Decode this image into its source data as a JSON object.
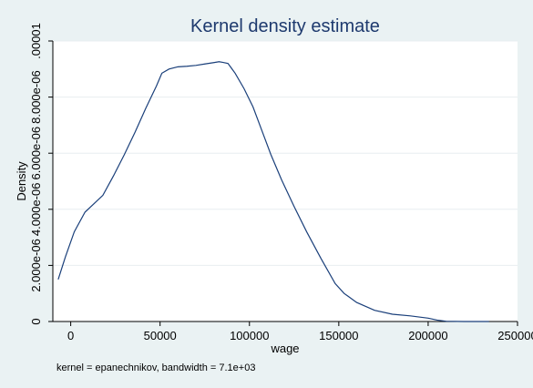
{
  "chart_data": {
    "type": "line",
    "title": "Kernel density estimate",
    "xlabel": "wage",
    "ylabel": "Density",
    "note": "kernel = epanechnikov, bandwidth =  7.1e+03",
    "xlim": [
      -10000,
      250000
    ],
    "ylim": [
      0,
      1e-05
    ],
    "x_ticks": [
      {
        "value": 0,
        "label": "0"
      },
      {
        "value": 50000,
        "label": "50000"
      },
      {
        "value": 100000,
        "label": "100000"
      },
      {
        "value": 150000,
        "label": "150000"
      },
      {
        "value": 200000,
        "label": "200000"
      },
      {
        "value": 250000,
        "label": "250000"
      }
    ],
    "y_ticks": [
      {
        "value": 0,
        "label": "0"
      },
      {
        "value": 2e-06,
        "label": "2.000e-06"
      },
      {
        "value": 4e-06,
        "label": "4.000e-06"
      },
      {
        "value": 6e-06,
        "label": "6.000e-06"
      },
      {
        "value": 8e-06,
        "label": "8.000e-06"
      },
      {
        "value": 1e-05,
        "label": ".00001"
      }
    ],
    "grid": true,
    "line_color": "#1a3f7a",
    "series": [
      {
        "x": [
          -7000,
          -3000,
          2000,
          8000,
          13000,
          18000,
          24000,
          30000,
          36000,
          42000,
          48000,
          51000,
          55000,
          60000,
          65000,
          70000,
          75000,
          80000,
          83000,
          85000,
          88000,
          92000,
          97000,
          102000,
          107000,
          112000,
          118000,
          125000,
          132000,
          140000,
          148000,
          153000,
          160000,
          170000,
          180000,
          190000,
          200000,
          205000,
          210000,
          220000,
          234000
        ],
        "y": [
          1.5e-06,
          2.3e-06,
          3.2e-06,
          3.9e-06,
          4.2e-06,
          4.5e-06,
          5.2e-06,
          5.95e-06,
          6.75e-06,
          7.6e-06,
          8.4e-06,
          8.85e-06,
          9e-06,
          9.08e-06,
          9.1e-06,
          9.13e-06,
          9.18e-06,
          9.23e-06,
          9.26e-06,
          9.24e-06,
          9.2e-06,
          8.85e-06,
          8.3e-06,
          7.65e-06,
          6.8e-06,
          5.95e-06,
          5.05e-06,
          4.1e-06,
          3.2e-06,
          2.25e-06,
          1.35e-06,
          1e-06,
          6.8e-07,
          4e-07,
          2.6e-07,
          2e-07,
          1.2e-07,
          5e-08,
          1e-08,
          0.0,
          0.0
        ]
      }
    ]
  }
}
